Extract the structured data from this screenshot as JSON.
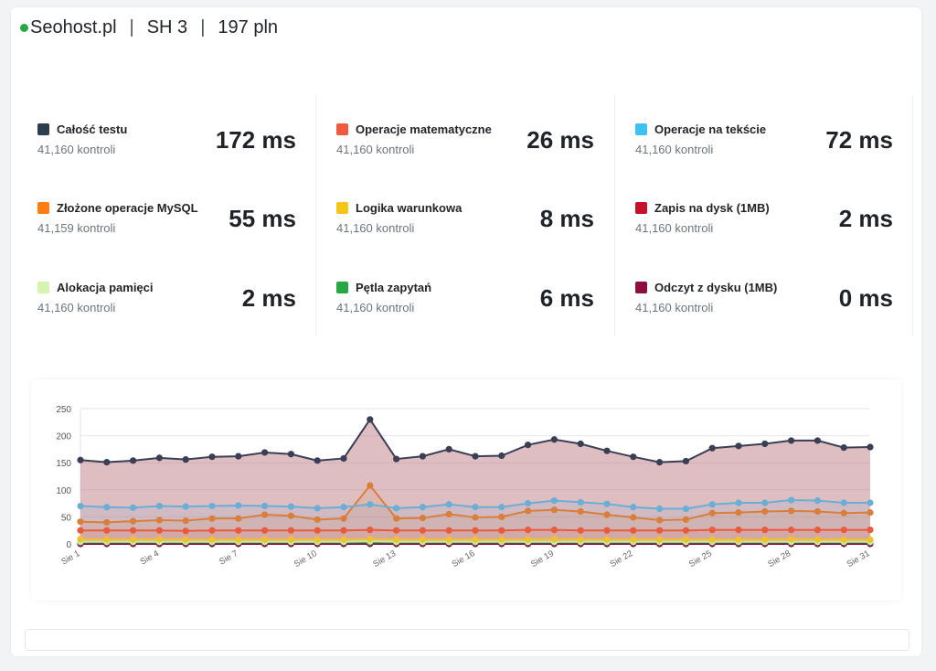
{
  "header": {
    "provider": "Seohost.pl",
    "separator": "|",
    "plan": "SH 3",
    "price": "197 pln",
    "status_color": "#28a745"
  },
  "stats": [
    {
      "name": "Całość testu",
      "count": "41,160 kontroli",
      "value": "172 ms",
      "color": "#2c3e50"
    },
    {
      "name": "Złożone operacje MySQL",
      "count": "41,159 kontroli",
      "value": "55 ms",
      "color": "#fd7e14"
    },
    {
      "name": "Alokacja pamięci",
      "count": "41,160 kontroli",
      "value": "2 ms",
      "color": "#d4f4b0"
    },
    {
      "name": "Operacje matematyczne",
      "count": "41,160 kontroli",
      "value": "26 ms",
      "color": "#f05a40"
    },
    {
      "name": "Logika warunkowa",
      "count": "41,160 kontroli",
      "value": "8 ms",
      "color": "#f5c518"
    },
    {
      "name": "Pętla zapytań",
      "count": "41,160 kontroli",
      "value": "6 ms",
      "color": "#28a745"
    },
    {
      "name": "Operacje na tekście",
      "count": "41,160 kontroli",
      "value": "72 ms",
      "color": "#3ec0f0"
    },
    {
      "name": "Zapis na dysk (1MB)",
      "count": "41,160 kontroli",
      "value": "2 ms",
      "color": "#c8102e"
    },
    {
      "name": "Odczyt z dysku (1MB)",
      "count": "41,160 kontroli",
      "value": "0 ms",
      "color": "#8b1040"
    }
  ],
  "chart_data": {
    "type": "line",
    "x": [
      "Sie 1",
      "Sie 2",
      "Sie 3",
      "Sie 4",
      "Sie 5",
      "Sie 6",
      "Sie 7",
      "Sie 8",
      "Sie 9",
      "Sie 10",
      "Sie 11",
      "Sie 12",
      "Sie 13",
      "Sie 14",
      "Sie 15",
      "Sie 16",
      "Sie 17",
      "Sie 18",
      "Sie 19",
      "Sie 20",
      "Sie 21",
      "Sie 22",
      "Sie 23",
      "Sie 24",
      "Sie 25",
      "Sie 26",
      "Sie 27",
      "Sie 28",
      "Sie 29",
      "Sie 30",
      "Sie 31"
    ],
    "xtick_labels": [
      "Sie 1",
      "Sie 4",
      "Sie 7",
      "Sie 10",
      "Sie 13",
      "Sie 16",
      "Sie 19",
      "Sie 22",
      "Sie 25",
      "Sie 28",
      "Sie 31"
    ],
    "yticks": [
      0,
      50,
      100,
      150,
      200,
      250
    ],
    "ylim": [
      0,
      250
    ],
    "grid": true,
    "series": [
      {
        "color": "#3a3f55",
        "fill": "#b96f78",
        "fill_opacity": 0.45,
        "values": [
          155,
          151,
          154,
          159,
          156,
          161,
          162,
          169,
          166,
          154,
          158,
          230,
          157,
          162,
          175,
          162,
          163,
          183,
          193,
          185,
          172,
          161,
          151,
          153,
          177,
          181,
          185,
          191,
          191,
          178,
          179
        ]
      },
      {
        "color": "#6aaed6",
        "fill": "#6aaed6",
        "fill_opacity": 0.12,
        "values": [
          70,
          68,
          67,
          70,
          69,
          70,
          71,
          70,
          69,
          66,
          68,
          73,
          66,
          68,
          73,
          68,
          68,
          75,
          80,
          77,
          74,
          68,
          65,
          65,
          73,
          76,
          76,
          81,
          80,
          76,
          76
        ]
      },
      {
        "color": "#d97f3c",
        "fill": "#d97f3c",
        "fill_opacity": 0.12,
        "values": [
          41,
          40,
          42,
          44,
          43,
          47,
          47,
          54,
          52,
          45,
          47,
          108,
          47,
          48,
          55,
          49,
          50,
          61,
          63,
          60,
          54,
          49,
          44,
          45,
          57,
          58,
          60,
          61,
          60,
          57,
          58
        ]
      },
      {
        "color": "#ea5a3c",
        "fill": "#ea5a3c",
        "fill_opacity": 0.1,
        "values": [
          25,
          25,
          25,
          25,
          24,
          25,
          25,
          25,
          25,
          25,
          25,
          26,
          25,
          25,
          25,
          25,
          25,
          26,
          26,
          25,
          25,
          25,
          25,
          25,
          26,
          26,
          26,
          26,
          26,
          26,
          26
        ]
      },
      {
        "color": "#f0c030",
        "fill": "#f0c030",
        "fill_opacity": 0.1,
        "values": [
          9,
          8,
          8,
          9,
          8,
          8,
          8,
          8,
          8,
          8,
          8,
          9,
          8,
          8,
          8,
          8,
          8,
          8,
          9,
          8,
          8,
          8,
          8,
          8,
          8,
          8,
          8,
          9,
          8,
          8,
          8
        ]
      },
      {
        "color": "#c9e9a0",
        "fill": "#c9e9a0",
        "fill_opacity": 0.1,
        "values": [
          4,
          4,
          4,
          4,
          4,
          4,
          4,
          4,
          4,
          4,
          4,
          5,
          4,
          4,
          4,
          4,
          4,
          4,
          4,
          4,
          4,
          4,
          4,
          4,
          4,
          4,
          4,
          4,
          4,
          4,
          4
        ]
      },
      {
        "color": "#2ea44f",
        "fill": "#2ea44f",
        "fill_opacity": 0.1,
        "values": [
          3,
          3,
          3,
          3,
          3,
          3,
          3,
          3,
          3,
          3,
          3,
          3,
          3,
          3,
          3,
          3,
          3,
          3,
          3,
          3,
          3,
          3,
          3,
          3,
          3,
          3,
          3,
          3,
          3,
          3,
          3
        ]
      },
      {
        "color": "#8b1040",
        "fill": "#8b1040",
        "fill_opacity": 0.1,
        "values": [
          0,
          0,
          0,
          0,
          0,
          0,
          0,
          0,
          0,
          0,
          0,
          0,
          0,
          0,
          0,
          0,
          0,
          0,
          0,
          0,
          0,
          0,
          0,
          0,
          0,
          0,
          0,
          0,
          0,
          0,
          0
        ]
      }
    ]
  }
}
